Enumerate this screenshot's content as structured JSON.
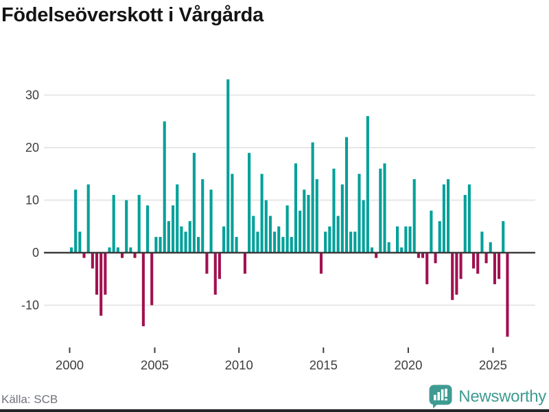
{
  "title": "Födelseöverskott i Vårgårda",
  "source": {
    "label": "Källa: SCB"
  },
  "brand": {
    "name": "Newsworthy",
    "color": "#3f9b91",
    "icon": "bar-chart-speech-bubble-icon"
  },
  "colors": {
    "positive": "#00a099",
    "negative": "#a21050",
    "grid": "#e7e7e7",
    "zero_axis": "#3b3b3b",
    "tick_text": "#3e3e3e",
    "title_text": "#141414",
    "source_text": "#6e727a",
    "footer_bar": "#23242a"
  },
  "chart_data": {
    "type": "bar",
    "title": "Födelseöverskott i Vårgårda",
    "frequency": "quarterly",
    "x_start": "2000-Q1",
    "x_end": "2025-Q4",
    "xticks": [
      "2000",
      "2005",
      "2010",
      "2015",
      "2020",
      "2025"
    ],
    "yticks": [
      30,
      20,
      10,
      0,
      -10
    ],
    "ylim": [
      -17,
      38
    ],
    "grid": true,
    "legend": false,
    "values": [
      1,
      12,
      4,
      -1,
      13,
      -3,
      -8,
      -12,
      -8,
      1,
      11,
      1,
      -1,
      10,
      1,
      -1,
      11,
      -14,
      9,
      -10,
      3,
      3,
      25,
      6,
      9,
      13,
      5,
      4,
      6,
      19,
      3,
      14,
      -4,
      12,
      -8,
      -5,
      5,
      33,
      15,
      3,
      0,
      -4,
      19,
      7,
      4,
      15,
      10,
      7,
      4,
      5,
      3,
      9,
      3,
      17,
      8,
      12,
      11,
      21,
      14,
      -4,
      4,
      5,
      16,
      7,
      13,
      22,
      4,
      4,
      15,
      10,
      26,
      1,
      -1,
      16,
      17,
      2,
      0,
      5,
      1,
      5,
      5,
      14,
      -1,
      -1,
      -6,
      8,
      -2,
      6,
      13,
      14,
      -9,
      -8,
      -5,
      11,
      13,
      -3,
      -4,
      4,
      -2,
      2,
      -6,
      -5,
      6,
      -16
    ]
  }
}
